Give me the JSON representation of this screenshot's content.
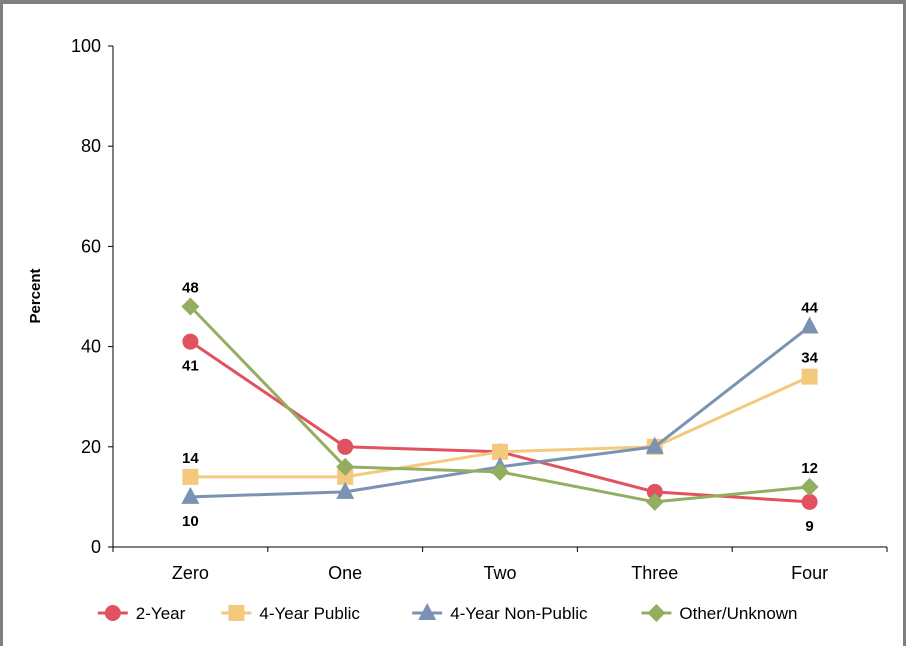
{
  "chart_data": {
    "type": "line",
    "title": "",
    "xlabel": "",
    "ylabel": "Percent",
    "ylim": [
      0,
      100
    ],
    "yticks": [
      0,
      20,
      40,
      60,
      80,
      100
    ],
    "categories": [
      "Zero",
      "One",
      "Two",
      "Three",
      "Four"
    ],
    "grid": false,
    "legend": "bottom",
    "series": [
      {
        "name": "2-Year",
        "color": "#e0525e",
        "marker": "circle",
        "values": [
          41,
          20,
          19,
          11,
          9
        ]
      },
      {
        "name": "4-Year Public",
        "color": "#f2c97d",
        "marker": "square",
        "values": [
          14,
          14,
          19,
          20,
          34
        ]
      },
      {
        "name": "4-Year Non-Public",
        "color": "#7b93b3",
        "marker": "triangle",
        "values": [
          10,
          11,
          16,
          20,
          44
        ]
      },
      {
        "name": "Other/Unknown",
        "color": "#93ae61",
        "marker": "diamond",
        "values": [
          48,
          16,
          15,
          9,
          12
        ]
      }
    ],
    "data_labels": [
      {
        "series": 3,
        "index": 0,
        "text": "48",
        "pos": "above"
      },
      {
        "series": 0,
        "index": 0,
        "text": "41",
        "pos": "below"
      },
      {
        "series": 1,
        "index": 0,
        "text": "14",
        "pos": "above"
      },
      {
        "series": 2,
        "index": 0,
        "text": "10",
        "pos": "below"
      },
      {
        "series": 2,
        "index": 4,
        "text": "44",
        "pos": "above"
      },
      {
        "series": 1,
        "index": 4,
        "text": "34",
        "pos": "above"
      },
      {
        "series": 3,
        "index": 4,
        "text": "12",
        "pos": "above"
      },
      {
        "series": 0,
        "index": 4,
        "text": "9",
        "pos": "below"
      }
    ]
  }
}
